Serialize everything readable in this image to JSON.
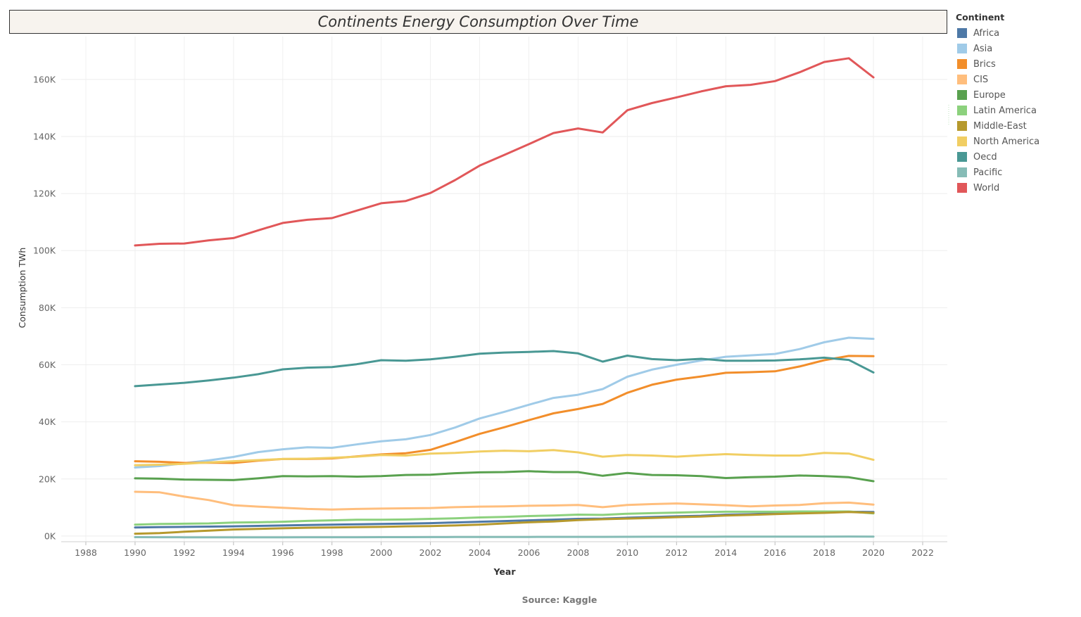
{
  "chart_data": {
    "type": "line",
    "title": "Continents Energy Consumption Over Time",
    "xlabel": "Year",
    "ylabel": "Consumption TWh",
    "source": "Source: Kaggle",
    "legend_title": "Continent",
    "legend_position": "right",
    "grid": true,
    "xlim": [
      1987,
      2023
    ],
    "ylim": [
      -2000,
      175000
    ],
    "x_ticks": [
      "1988",
      "1990",
      "1992",
      "1994",
      "1996",
      "1998",
      "2000",
      "2002",
      "2004",
      "2006",
      "2008",
      "2010",
      "2012",
      "2014",
      "2016",
      "2018",
      "2020",
      "2022"
    ],
    "y_ticks": [
      {
        "value": 0,
        "label": "0K"
      },
      {
        "value": 20000,
        "label": "20K"
      },
      {
        "value": 40000,
        "label": "40K"
      },
      {
        "value": 60000,
        "label": "60K"
      },
      {
        "value": 80000,
        "label": "80K"
      },
      {
        "value": 100000,
        "label": "100K"
      },
      {
        "value": 120000,
        "label": "120K"
      },
      {
        "value": 140000,
        "label": "140K"
      },
      {
        "value": 160000,
        "label": "160K"
      }
    ],
    "x": [
      1990,
      1991,
      1992,
      1993,
      1994,
      1995,
      1996,
      1997,
      1998,
      1999,
      2000,
      2001,
      2002,
      2003,
      2004,
      2005,
      2006,
      2007,
      2008,
      2009,
      2010,
      2011,
      2012,
      2013,
      2014,
      2015,
      2016,
      2017,
      2018,
      2019,
      2020
    ],
    "series": [
      {
        "name": "Africa",
        "color": "#4e79a7",
        "values": [
          3000,
          3100,
          3200,
          3300,
          3400,
          3550,
          3700,
          3850,
          4000,
          4100,
          4200,
          4350,
          4500,
          4750,
          5000,
          5250,
          5500,
          5750,
          6000,
          6100,
          6400,
          6650,
          6900,
          7100,
          7500,
          7650,
          7900,
          8100,
          8300,
          8500,
          8400
        ]
      },
      {
        "name": "Asia",
        "color": "#a0cbe8",
        "values": [
          24000,
          24500,
          25500,
          26500,
          27700,
          29400,
          30400,
          31100,
          30900,
          32100,
          33200,
          33900,
          35400,
          38000,
          41200,
          43500,
          46000,
          48400,
          49500,
          51500,
          55800,
          58300,
          60000,
          61500,
          62800,
          63300,
          63800,
          65500,
          67900,
          69500,
          69100
        ]
      },
      {
        "name": "Brics",
        "color": "#f28e2b",
        "values": [
          26200,
          26000,
          25600,
          25700,
          25600,
          26400,
          27000,
          27000,
          27200,
          27900,
          28600,
          29000,
          30200,
          32900,
          35800,
          38100,
          40600,
          43000,
          44500,
          46300,
          50200,
          53000,
          54800,
          55900,
          57200,
          57400,
          57700,
          59400,
          61600,
          63100,
          63000
        ]
      },
      {
        "name": "CIS",
        "color": "#ffbe7d",
        "values": [
          15500,
          15300,
          13800,
          12600,
          10800,
          10300,
          9900,
          9500,
          9300,
          9500,
          9600,
          9700,
          9800,
          10100,
          10300,
          10400,
          10600,
          10700,
          10900,
          10100,
          10900,
          11200,
          11400,
          11100,
          10800,
          10400,
          10700,
          10900,
          11500,
          11700,
          11000
        ]
      },
      {
        "name": "Europe",
        "color": "#59a14f",
        "values": [
          20200,
          20100,
          19800,
          19700,
          19600,
          20200,
          21000,
          20900,
          21000,
          20800,
          21000,
          21400,
          21500,
          22000,
          22300,
          22400,
          22700,
          22400,
          22400,
          21100,
          22100,
          21400,
          21300,
          21000,
          20300,
          20600,
          20800,
          21200,
          21000,
          20600,
          19200
        ]
      },
      {
        "name": "Latin America",
        "color": "#8cd17d",
        "values": [
          4000,
          4200,
          4300,
          4400,
          4700,
          4800,
          5000,
          5300,
          5500,
          5700,
          5700,
          5800,
          6000,
          6200,
          6500,
          6700,
          7000,
          7200,
          7500,
          7400,
          7800,
          8000,
          8200,
          8400,
          8500,
          8500,
          8500,
          8600,
          8600,
          8600,
          7900
        ]
      },
      {
        "name": "Middle-East",
        "color": "#b6992d",
        "values": [
          800,
          1000,
          1500,
          1900,
          2300,
          2500,
          2700,
          2900,
          3000,
          3100,
          3200,
          3400,
          3500,
          3700,
          4000,
          4400,
          4800,
          5100,
          5600,
          5900,
          6100,
          6300,
          6600,
          6800,
          7200,
          7400,
          7700,
          7900,
          8100,
          8400,
          8100
        ]
      },
      {
        "name": "North America",
        "color": "#f1ce63",
        "values": [
          24800,
          25000,
          25300,
          25800,
          26200,
          26600,
          27000,
          27100,
          27400,
          27800,
          28400,
          28200,
          28900,
          29100,
          29600,
          29900,
          29700,
          30100,
          29300,
          27800,
          28400,
          28200,
          27800,
          28300,
          28700,
          28400,
          28200,
          28200,
          29100,
          28900,
          26700
        ]
      },
      {
        "name": "Oecd",
        "color": "#499894",
        "values": [
          52500,
          53100,
          53700,
          54500,
          55500,
          56700,
          58400,
          59000,
          59200,
          60200,
          61600,
          61400,
          61900,
          62800,
          63900,
          64300,
          64500,
          64800,
          64000,
          61100,
          63200,
          62000,
          61600,
          62100,
          61400,
          61400,
          61500,
          61900,
          62500,
          61700,
          57300
        ]
      },
      {
        "name": "Pacific",
        "color": "#86bcb6",
        "values": [
          -400,
          -420,
          -440,
          -450,
          -470,
          -480,
          -450,
          -430,
          -420,
          -410,
          -400,
          -390,
          -380,
          -360,
          -350,
          -330,
          -320,
          -300,
          -300,
          -290,
          -270,
          -260,
          -250,
          -240,
          -230,
          -220,
          -210,
          -200,
          -190,
          -170,
          -200
        ]
      },
      {
        "name": "World",
        "color": "#e15759",
        "values": [
          101800,
          102400,
          102500,
          103600,
          104400,
          107100,
          109700,
          110800,
          111400,
          114000,
          116600,
          117400,
          120200,
          124700,
          129800,
          133500,
          137300,
          141200,
          142800,
          141400,
          149200,
          151700,
          153700,
          155800,
          157600,
          158100,
          159400,
          162500,
          166100,
          167400,
          160700
        ]
      }
    ]
  }
}
